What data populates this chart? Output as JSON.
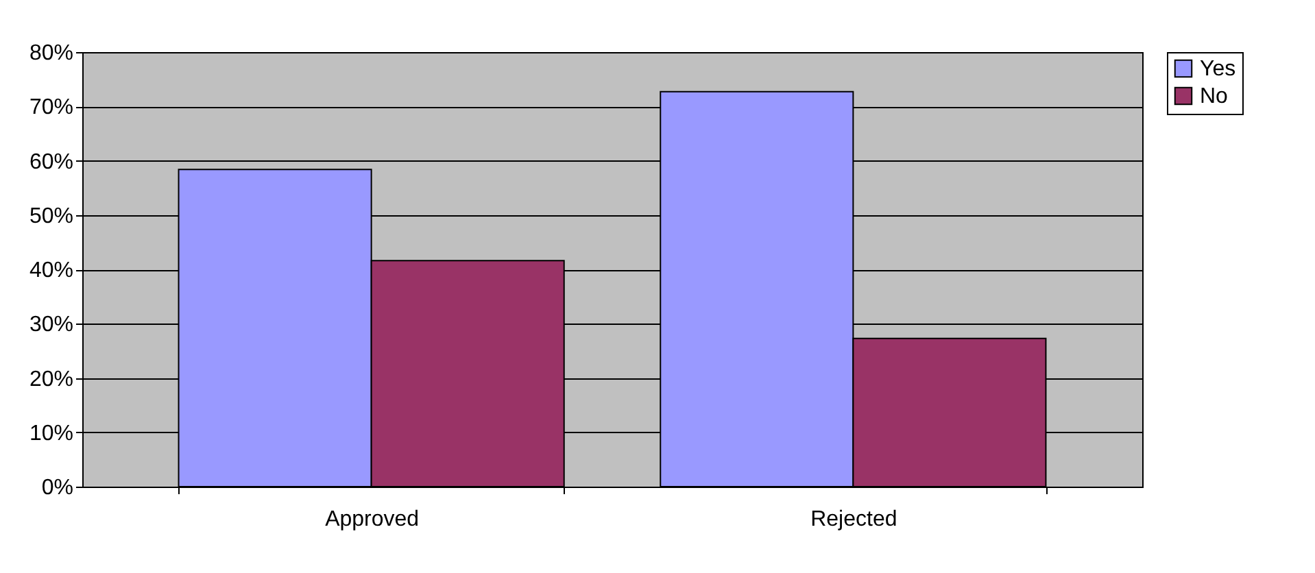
{
  "chart_data": {
    "type": "bar",
    "categories": [
      "Approved",
      "Rejected"
    ],
    "series": [
      {
        "name": "Yes",
        "color": "#9999ff",
        "values": [
          58.4,
          72.7
        ]
      },
      {
        "name": "No",
        "color": "#993366",
        "values": [
          41.6,
          27.3
        ]
      }
    ],
    "ylim": [
      0,
      80
    ],
    "yticks": [
      {
        "value": 0,
        "label": "0%"
      },
      {
        "value": 10,
        "label": "10%"
      },
      {
        "value": 20,
        "label": "20%"
      },
      {
        "value": 30,
        "label": "30%"
      },
      {
        "value": 40,
        "label": "40%"
      },
      {
        "value": 50,
        "label": "50%"
      },
      {
        "value": 60,
        "label": "60%"
      },
      {
        "value": 70,
        "label": "70%"
      },
      {
        "value": 80,
        "label": "80%"
      }
    ],
    "grid": "y",
    "legend": "right"
  }
}
